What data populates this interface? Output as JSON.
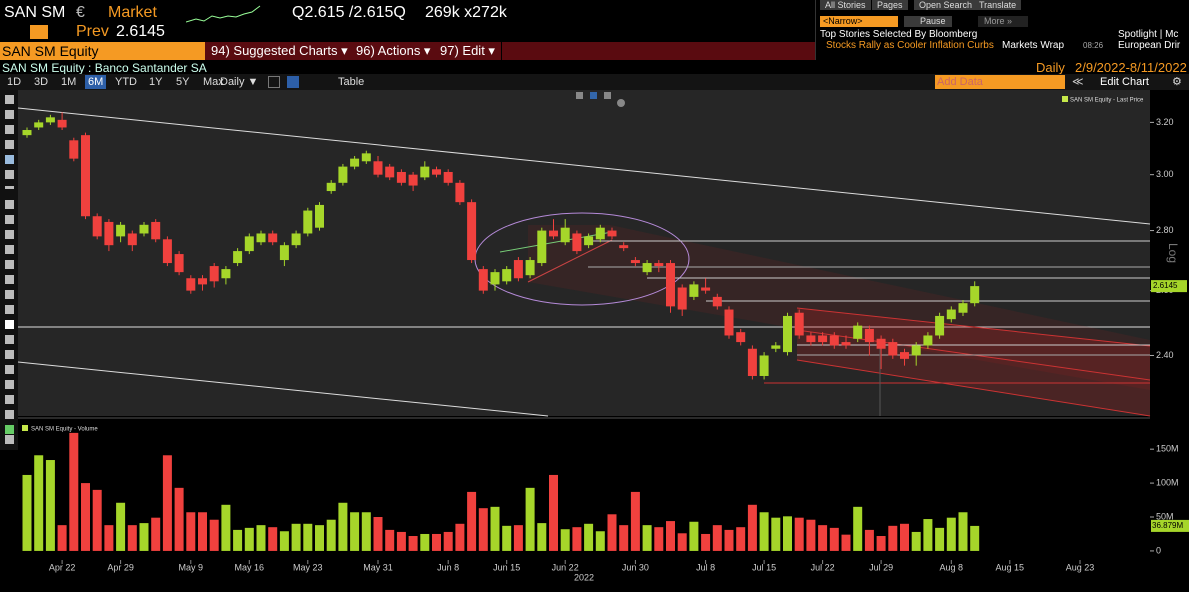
{
  "header": {
    "ticker": "SAN SM",
    "currency": "€",
    "session": "Market",
    "prev_label": "Prev",
    "prev_value": "2.6145",
    "quote": "Q2.615 /2.615Q",
    "size": "269k x272k"
  },
  "menu": {
    "security": "SAN SM Equity",
    "items": [
      "94) Suggested Charts ▾",
      "96) Actions ▾",
      "97) Edit ▾"
    ]
  },
  "subheader": {
    "description": "SAN SM Equity : Banco Santander SA",
    "frequency": "Daily",
    "range": "2/9/2022-8/11/2022"
  },
  "toolbar": {
    "periods": [
      "1D",
      "3D",
      "1M",
      "6M",
      "YTD",
      "1Y",
      "5Y",
      "Max"
    ],
    "active_period": "6M",
    "interval": "Daily ▼",
    "table": "Table",
    "add_data": "Add Data",
    "edit_chart": "Edit Chart"
  },
  "news": {
    "tabs": [
      "All Stories",
      "Pages",
      "Open Search",
      "Translate"
    ],
    "narrow": "<Narrow>",
    "pause": "Pause",
    "more": "More »",
    "heading": "Top Stories Selected By Bloomberg",
    "headline": "Stocks Rally as Cooler Inflation Curbs",
    "source": "Markets Wrap",
    "time": "08:26",
    "spotlight": "Spotlight | Mc",
    "spotlight_item": "European Drir"
  },
  "chart_data": {
    "type": "candlestick",
    "log_scale": true,
    "axis_scale_label": "Log",
    "x_axis_year": "2022",
    "categories": [
      null,
      null,
      null,
      "Apr 22",
      null,
      null,
      null,
      null,
      "Apr 29",
      null,
      null,
      null,
      null,
      null,
      "May 9",
      null,
      null,
      null,
      null,
      "May 16",
      null,
      null,
      null,
      null,
      "May 23",
      null,
      null,
      null,
      null,
      null,
      "May 31",
      null,
      null,
      null,
      null,
      null,
      "Jun 8",
      null,
      null,
      null,
      null,
      "Jun 15",
      null,
      null,
      null,
      null,
      "Jun 22",
      null,
      null,
      null,
      null,
      null,
      "Jun 30",
      null,
      null,
      null,
      null,
      null,
      "Jul 8",
      null,
      null,
      null,
      null,
      "Jul 15",
      null,
      null,
      null,
      null,
      "Jul 22",
      null,
      null,
      null,
      null,
      "Jul 29",
      null,
      null,
      null,
      null,
      null,
      "Aug 8",
      null,
      null,
      null,
      null,
      "Aug 15",
      null,
      null,
      null,
      null,
      null,
      "Aug 23",
      null,
      null,
      null,
      null,
      null
    ],
    "series": [
      {
        "name": "SAN SM Equity - Last Price",
        "up_color": "#a6d62a",
        "down_color": "#f0413e",
        "open": [
          3.15,
          3.18,
          3.2,
          3.21,
          3.13,
          3.15,
          2.85,
          2.83,
          2.78,
          2.79,
          2.79,
          2.83,
          2.77,
          2.72,
          2.64,
          2.64,
          2.68,
          2.64,
          2.69,
          2.73,
          2.76,
          2.79,
          2.7,
          2.75,
          2.79,
          2.81,
          2.94,
          2.97,
          3.03,
          3.05,
          3.05,
          3.03,
          3.01,
          3.0,
          2.99,
          3.02,
          3.01,
          2.97,
          2.9,
          2.67,
          2.62,
          2.63,
          2.7,
          2.65,
          2.69,
          2.8,
          2.76,
          2.79,
          2.75,
          2.77,
          2.8,
          2.75,
          2.7,
          2.66,
          2.69,
          2.69,
          2.61,
          2.58,
          2.61,
          2.58,
          2.54,
          2.47,
          2.42,
          2.34,
          2.42,
          2.41,
          2.53,
          2.46,
          2.46,
          2.46,
          2.44,
          2.45,
          2.48,
          2.45,
          2.44,
          2.41,
          2.4,
          2.43,
          2.46,
          2.51,
          2.53,
          2.56,
          null,
          null,
          null,
          null,
          null,
          null,
          null,
          null,
          null,
          null,
          null,
          null,
          null,
          null
        ],
        "high": [
          3.18,
          3.21,
          3.23,
          3.24,
          3.14,
          3.16,
          2.86,
          2.84,
          2.83,
          2.8,
          2.83,
          2.84,
          2.78,
          2.73,
          2.65,
          2.65,
          2.69,
          2.68,
          2.74,
          2.79,
          2.8,
          2.8,
          2.76,
          2.8,
          2.88,
          2.9,
          2.98,
          3.04,
          3.07,
          3.09,
          3.07,
          3.04,
          3.02,
          3.01,
          3.05,
          3.03,
          3.02,
          2.98,
          2.91,
          2.68,
          2.67,
          2.68,
          2.71,
          2.71,
          2.81,
          2.84,
          2.84,
          2.8,
          2.79,
          2.82,
          2.81,
          2.76,
          2.71,
          2.7,
          2.7,
          2.7,
          2.62,
          2.63,
          2.64,
          2.59,
          2.55,
          2.48,
          2.43,
          2.41,
          2.44,
          2.53,
          2.54,
          2.47,
          2.47,
          2.47,
          2.46,
          2.5,
          2.49,
          2.46,
          2.45,
          2.42,
          2.44,
          2.47,
          2.53,
          2.55,
          2.57,
          2.63,
          null,
          null,
          null,
          null,
          null,
          null,
          null,
          null,
          null,
          null,
          null,
          null,
          null,
          null
        ],
        "low": [
          3.14,
          3.17,
          3.19,
          3.17,
          3.05,
          2.84,
          2.77,
          2.73,
          2.76,
          2.73,
          2.78,
          2.76,
          2.68,
          2.65,
          2.59,
          2.6,
          2.61,
          2.62,
          2.68,
          2.72,
          2.75,
          2.75,
          2.68,
          2.74,
          2.78,
          2.8,
          2.93,
          2.96,
          3.02,
          3.04,
          2.99,
          2.98,
          2.96,
          2.94,
          2.98,
          2.99,
          2.96,
          2.89,
          2.69,
          2.59,
          2.6,
          2.62,
          2.63,
          2.64,
          2.68,
          2.77,
          2.75,
          2.72,
          2.74,
          2.76,
          2.77,
          2.73,
          2.68,
          2.65,
          2.66,
          2.53,
          2.52,
          2.57,
          2.59,
          2.54,
          2.45,
          2.43,
          2.33,
          2.33,
          2.41,
          2.4,
          2.45,
          2.43,
          2.43,
          2.42,
          2.42,
          2.44,
          2.4,
          2.36,
          2.39,
          2.37,
          2.37,
          2.42,
          2.45,
          2.5,
          2.52,
          2.55,
          null,
          null,
          null,
          null,
          null,
          null,
          null,
          null,
          null,
          null,
          null,
          null,
          null,
          null
        ],
        "close": [
          3.17,
          3.2,
          3.22,
          3.18,
          3.06,
          2.85,
          2.78,
          2.75,
          2.82,
          2.75,
          2.82,
          2.77,
          2.69,
          2.66,
          2.6,
          2.62,
          2.63,
          2.67,
          2.73,
          2.78,
          2.79,
          2.76,
          2.75,
          2.79,
          2.87,
          2.89,
          2.97,
          3.03,
          3.06,
          3.08,
          3.0,
          2.99,
          2.97,
          2.96,
          3.03,
          3.0,
          2.97,
          2.9,
          2.7,
          2.6,
          2.66,
          2.67,
          2.64,
          2.7,
          2.8,
          2.78,
          2.81,
          2.73,
          2.78,
          2.81,
          2.78,
          2.74,
          2.69,
          2.69,
          2.68,
          2.55,
          2.54,
          2.62,
          2.6,
          2.55,
          2.46,
          2.44,
          2.34,
          2.4,
          2.43,
          2.52,
          2.46,
          2.44,
          2.44,
          2.43,
          2.43,
          2.49,
          2.44,
          2.42,
          2.4,
          2.39,
          2.43,
          2.46,
          2.52,
          2.54,
          2.56,
          2.6145,
          null,
          null,
          null,
          null,
          null,
          null,
          null,
          null,
          null,
          null,
          null,
          null,
          null,
          null
        ]
      }
    ],
    "last_price": 2.6145,
    "ylim": [
      2.23,
      3.31
    ],
    "yticks": [
      {
        "value": 2.4,
        "label": "2.40"
      },
      {
        "value": 2.6,
        "label": "2.60"
      },
      {
        "value": 2.8,
        "label": "2.80"
      },
      {
        "value": 3.0,
        "label": "3.00"
      },
      {
        "value": 3.2,
        "label": "3.20"
      }
    ],
    "volume": {
      "type": "bar",
      "name": "SAN SM Equity - Volume",
      "values": [
        112,
        141,
        134,
        38,
        174,
        100,
        90,
        38,
        71,
        38,
        41,
        49,
        141,
        93,
        57,
        57,
        46,
        68,
        31,
        34,
        38,
        35,
        29,
        40,
        40,
        38,
        46,
        71,
        57,
        57,
        50,
        31,
        28,
        22,
        25,
        25,
        28,
        40,
        87,
        63,
        65,
        37,
        38,
        93,
        41,
        112,
        32,
        35,
        40,
        29,
        54,
        38,
        87,
        38,
        35,
        44,
        26,
        43,
        25,
        38,
        31,
        35,
        68,
        57,
        49,
        51,
        49,
        46,
        38,
        34,
        24,
        65,
        31,
        22,
        37,
        40,
        28,
        47,
        34,
        49,
        57,
        36.879,
        null,
        null,
        null,
        null,
        null,
        null,
        null,
        null,
        null,
        null,
        null,
        null,
        null,
        null
      ],
      "last_value": {
        "value": 36.879,
        "label": "36.879M"
      },
      "ylim": [
        -6,
        193
      ],
      "yticks": [
        0,
        {
          "value": 50,
          "label": "50M"
        },
        {
          "value": 100,
          "label": "100M"
        },
        {
          "value": 150,
          "label": "150M"
        }
      ]
    }
  }
}
